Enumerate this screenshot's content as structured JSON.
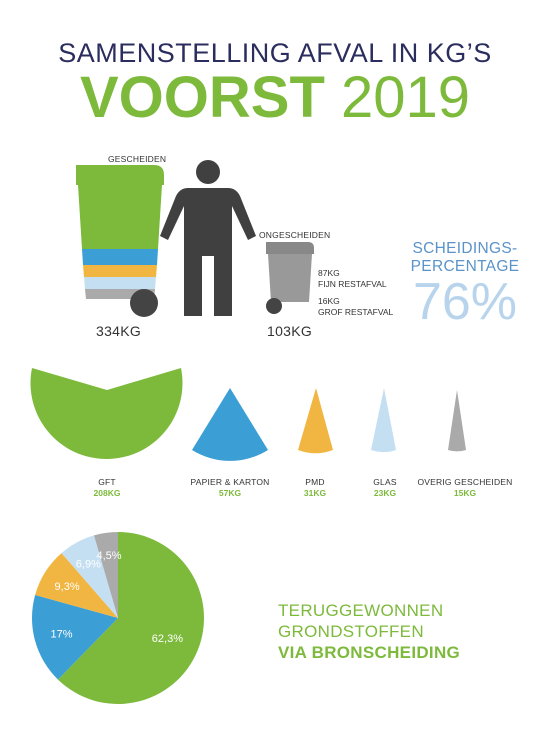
{
  "title": {
    "line1": "SAMENSTELLING AFVAL IN KG’S",
    "place": "VOORST",
    "year": "2019"
  },
  "bins": {
    "separated_label": "GESCHEIDEN",
    "separated_kg": "334KG",
    "unseparated_label": "ONGESCHEIDEN",
    "unseparated_kg": "103KG",
    "fine_kg": "87KG",
    "fine_label": "FIJN RESTAFVAL",
    "coarse_kg": "16KG",
    "coarse_label": "GROF RESTAFVAL"
  },
  "separation": {
    "label_line1": "SCHEIDINGS-",
    "label_line2": "PERCENTAGE",
    "value": "76%"
  },
  "categories": [
    {
      "label": "GFT",
      "kg": "208KG",
      "color": "#7dba3c"
    },
    {
      "label": "PAPIER & KARTON",
      "kg": "57KG",
      "color": "#3b9ed4"
    },
    {
      "label": "PMD",
      "kg": "31KG",
      "color": "#f1b541"
    },
    {
      "label": "GLAS",
      "kg": "23KG",
      "color": "#c5dff2"
    },
    {
      "label": "OVERIG GESCHEIDEN",
      "kg": "15KG",
      "color": "#aaaaaa"
    }
  ],
  "recovered": {
    "line1": "TERUGGEWONNEN",
    "line2": "GRONDSTOFFEN",
    "line3": "VIA BRONSCHEIDING"
  },
  "chart_data": {
    "type": "pie",
    "categories": [
      "GFT",
      "PAPIER & KARTON",
      "PMD",
      "GLAS",
      "OVERIG GESCHEIDEN"
    ],
    "values": [
      62.3,
      17,
      9.3,
      6.9,
      4.5
    ],
    "labels": [
      "62,3%",
      "17%",
      "9,3%",
      "6,9%",
      "4,5%"
    ],
    "colors": [
      "#7dba3c",
      "#3b9ed4",
      "#f1b541",
      "#c5dff2",
      "#aaaaaa"
    ]
  }
}
